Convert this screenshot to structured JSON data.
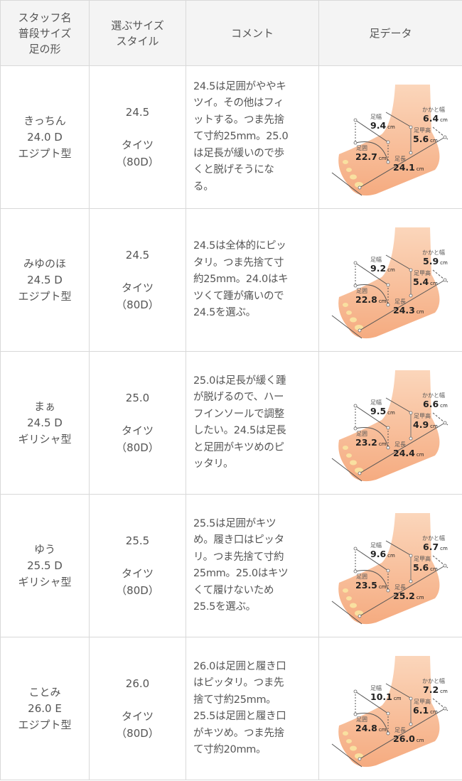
{
  "header": {
    "col1": "スタッフ名\n普段サイズ\n足の形",
    "col2": "選ぶサイズ\nスタイル",
    "col3": "コメント",
    "col4": "足データ"
  },
  "foot_labels": {
    "width": "足幅",
    "heel": "かかと幅",
    "instep": "足甲高",
    "girth": "足囲",
    "length": "足長",
    "unit": "cm"
  },
  "rows": [
    {
      "name": "きっちん\n24.0 D\nエジプト型",
      "size": "24.5",
      "style": "タイツ\n（80D）",
      "comment": "24.5は足囲がややキ\nツイ。その他はフィ\nットする。つま先捨\nて寸約25mm。25.0\nは足長が緩いので歩\nくと脱げそうにな\nる。",
      "foot": {
        "width": "9.4",
        "heel": "6.4",
        "instep": "5.6",
        "girth": "22.7",
        "length": "24.1"
      }
    },
    {
      "name": "みゆのほ\n24.5 D\nエジプト型",
      "size": "24.5",
      "style": "タイツ\n（80D）",
      "comment": "24.5は全体的にピッ\nタリ。つま先捨て寸\n約25mm。24.0はキ\nツくて踵が痛いので\n24.5を選ぶ。",
      "foot": {
        "width": "9.2",
        "heel": "5.9",
        "instep": "5.4",
        "girth": "22.8",
        "length": "24.3"
      }
    },
    {
      "name": "まぁ\n24.5 D\nギリシャ型",
      "size": "25.0",
      "style": "タイツ\n（80D）",
      "comment": "25.0は足長が緩く踵\nが脱げるので、ハー\nフインソールで調整\nしたい。24.5は足長\nと足囲がキツめのピ\nッタリ。",
      "foot": {
        "width": "9.5",
        "heel": "6.6",
        "instep": "4.9",
        "girth": "23.2",
        "length": "24.4"
      }
    },
    {
      "name": "ゆう\n25.5 D\nギリシャ型",
      "size": "25.5",
      "style": "タイツ\n（80D）",
      "comment": "25.5は足囲がキツ\nめ。履き口はピッタ\nリ。つま先捨て寸約\n25mm。25.0はキツ\nくて履けないため\n25.5を選ぶ。",
      "foot": {
        "width": "9.6",
        "heel": "6.7",
        "instep": "5.6",
        "girth": "23.5",
        "length": "25.2"
      }
    },
    {
      "name": "ことみ\n26.0 E\nエジプト型",
      "size": "26.0",
      "style": "タイツ\n（80D）",
      "comment": "26.0は足囲と履き口\nはピッタリ。つま先\n捨て寸約25mm。\n25.5は足囲と履き口\nがキツめ。つま先捨\nて寸約20mm。",
      "foot": {
        "width": "10.1",
        "heel": "7.2",
        "instep": "6.1",
        "girth": "24.8",
        "length": "26.0"
      }
    }
  ],
  "colors": {
    "skin": "#f6b58c",
    "skin_light": "#fbd3b6",
    "border": "#d9d9d9",
    "header_bg": "#f4f4f4"
  }
}
